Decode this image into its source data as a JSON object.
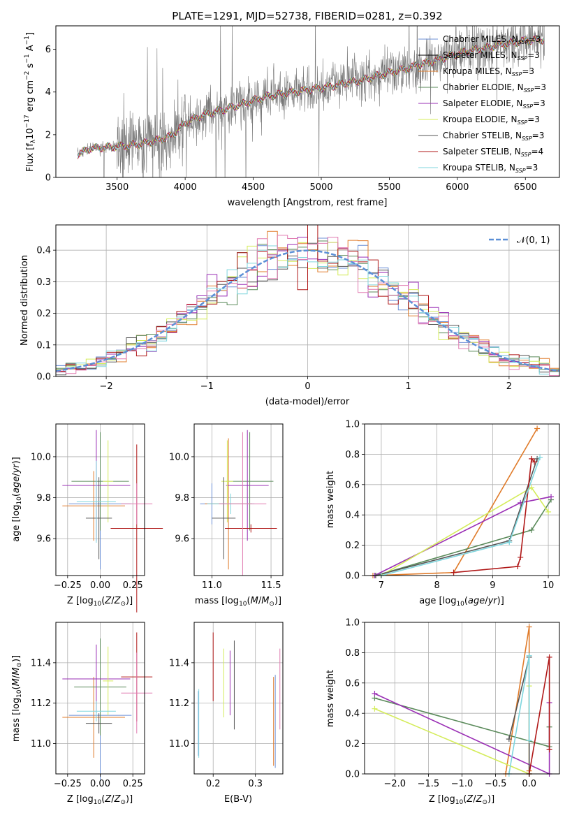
{
  "colors": {
    "chabrier_miles": "#6b8fd6",
    "salpeter_miles": "#000000",
    "kroupa_miles": "#e07b2a",
    "chabrier_elodie": "#5a8a5a",
    "salpeter_elodie": "#9a2fb5",
    "kroupa_elodie": "#d4ec5a",
    "chabrier_stelib": "#555555",
    "salpeter_stelib": "#b01818",
    "kroupa_stelib": "#7fd6de",
    "pink": "#e07ab0",
    "normal": "#5b8fd6",
    "data": "#777777"
  },
  "chart_data": [
    {
      "id": "spectrum",
      "type": "line",
      "title": "PLATE=1291, MJD=52738, FIBERID=0281, z=0.392",
      "xlabel": "wavelength [Angstrom, rest frame]",
      "ylabel": "Flux [f_λ 10^-17 erg cm^-2 s^-1 A^-1]",
      "xlim": [
        3050,
        6750
      ],
      "ylim": [
        0,
        7.1
      ],
      "xticks": [
        "3500",
        "4000",
        "4500",
        "5000",
        "5500",
        "6000",
        "6500"
      ],
      "yticks": [
        "0",
        "2",
        "4",
        "6"
      ],
      "legend_position": "right",
      "legend": [
        {
          "name": "Chabrier MILES, N_SSP=3",
          "color_key": "chabrier_miles"
        },
        {
          "name": "Salpeter MILES, N_SSP=3",
          "color_key": "salpeter_miles"
        },
        {
          "name": "Kroupa MILES, N_SSP=3",
          "color_key": "kroupa_miles"
        },
        {
          "name": "Chabrier ELODIE, N_SSP=3",
          "color_key": "chabrier_elodie"
        },
        {
          "name": "Salpeter ELODIE, N_SSP=3",
          "color_key": "salpeter_elodie"
        },
        {
          "name": "Kroupa ELODIE, N_SSP=3",
          "color_key": "kroupa_elodie"
        },
        {
          "name": "Chabrier STELIB, N_SSP=3",
          "color_key": "chabrier_stelib"
        },
        {
          "name": "Salpeter STELIB, N_SSP=4",
          "color_key": "salpeter_stelib"
        },
        {
          "name": "Kroupa STELIB, N_SSP=3",
          "color_key": "kroupa_stelib"
        }
      ],
      "model_continuum": [
        [
          3200,
          1.05
        ],
        [
          3300,
          1.35
        ],
        [
          3400,
          1.4
        ],
        [
          3500,
          1.45
        ],
        [
          3600,
          1.5
        ],
        [
          3700,
          1.6
        ],
        [
          3800,
          1.75
        ],
        [
          3900,
          1.95
        ],
        [
          4000,
          2.55
        ],
        [
          4100,
          2.85
        ],
        [
          4200,
          3.05
        ],
        [
          4300,
          3.2
        ],
        [
          4400,
          3.4
        ],
        [
          4500,
          3.6
        ],
        [
          4600,
          3.8
        ],
        [
          4700,
          3.9
        ],
        [
          4800,
          4.0
        ],
        [
          4900,
          4.1
        ],
        [
          5000,
          4.2
        ],
        [
          5100,
          4.3
        ],
        [
          5200,
          4.45
        ],
        [
          5300,
          4.55
        ],
        [
          5400,
          4.75
        ],
        [
          5500,
          4.9
        ],
        [
          5600,
          5.05
        ],
        [
          5700,
          5.25
        ],
        [
          5800,
          5.4
        ],
        [
          5900,
          5.6
        ],
        [
          6000,
          5.8
        ],
        [
          6100,
          5.95
        ],
        [
          6200,
          6.05
        ],
        [
          6300,
          6.2
        ],
        [
          6400,
          6.3
        ],
        [
          6500,
          6.4
        ],
        [
          6600,
          6.45
        ]
      ]
    },
    {
      "id": "residuals",
      "type": "line",
      "xlabel": "(data-model)/error",
      "ylabel": "Normed distribution",
      "xlim": [
        -2.5,
        2.5
      ],
      "ylim": [
        0,
        0.48
      ],
      "xticks": [
        "−2",
        "−1",
        "0",
        "1",
        "2"
      ],
      "yticks": [
        "0.0",
        "0.1",
        "0.2",
        "0.3",
        "0.4"
      ],
      "legend": [
        {
          "name": "𝒩(0, 1)",
          "color_key": "normal"
        }
      ],
      "legend_position": "top-right",
      "bin_width": 0.1
    },
    {
      "id": "age_vs_Z",
      "type": "scatter",
      "xlabel": "Z [log10(Z/Z⊙)]",
      "ylabel": "age  [log10(age/yr)]",
      "xlim": [
        -0.34,
        0.34
      ],
      "ylim": [
        9.42,
        10.16
      ],
      "xticks": [
        "−0.25",
        "0.00",
        "0.25"
      ],
      "yticks": [
        "9.6",
        "9.8",
        "10.0"
      ],
      "points": [
        {
          "x": 0.0,
          "xerr": 0.24,
          "y": 9.77,
          "yerr": 0.32,
          "color_key": "chabrier_miles"
        },
        {
          "x": -0.05,
          "xerr": 0.24,
          "y": 9.76,
          "yerr": 0.17,
          "color_key": "kroupa_miles"
        },
        {
          "x": 0.0,
          "xerr": 0.22,
          "y": 9.88,
          "yerr": 0.24,
          "color_key": "chabrier_elodie"
        },
        {
          "x": -0.03,
          "xerr": 0.26,
          "y": 9.86,
          "yerr": 0.27,
          "color_key": "salpeter_elodie"
        },
        {
          "x": 0.06,
          "xerr": 0.04,
          "y": 9.88,
          "yerr": 0.2,
          "color_key": "kroupa_elodie"
        },
        {
          "x": -0.01,
          "xerr": 0.1,
          "y": 9.7,
          "yerr": 0.2,
          "color_key": "chabrier_stelib"
        },
        {
          "x": 0.28,
          "xerr": 0.2,
          "y": 9.65,
          "yerr": 0.41,
          "color_key": "salpeter_stelib"
        },
        {
          "x": -0.03,
          "xerr": 0.15,
          "y": 9.78,
          "yerr": 0.2,
          "color_key": "kroupa_stelib"
        },
        {
          "x": 0.28,
          "xerr": 0.12,
          "y": 9.77,
          "yerr": 0.1,
          "color_key": "pink"
        }
      ]
    },
    {
      "id": "age_vs_mass",
      "type": "scatter",
      "xlabel": "mass [log10(M/M⊙)]",
      "xlim": [
        10.85,
        11.6
      ],
      "ylim": [
        9.42,
        10.16
      ],
      "xticks": [
        "11.0",
        "11.5"
      ],
      "yticks": [
        "9.6",
        "9.8",
        "10.0"
      ],
      "points": [
        {
          "x": 11.0,
          "xerr": 0.1,
          "y": 9.77,
          "yerr": 0.1,
          "color_key": "chabrier_miles"
        },
        {
          "x": 11.14,
          "xerr": 0.2,
          "y": 9.77,
          "yerr": 0.32,
          "color_key": "kroupa_miles"
        },
        {
          "x": 11.32,
          "xerr": 0.2,
          "y": 9.88,
          "yerr": 0.24,
          "color_key": "chabrier_elodie"
        },
        {
          "x": 11.3,
          "xerr": 0.18,
          "y": 9.86,
          "yerr": 0.27,
          "color_key": "salpeter_elodie"
        },
        {
          "x": 11.13,
          "xerr": 0.05,
          "y": 9.88,
          "yerr": 0.2,
          "color_key": "kroupa_elodie"
        },
        {
          "x": 11.1,
          "xerr": 0.1,
          "y": 9.7,
          "yerr": 0.2,
          "color_key": "chabrier_stelib"
        },
        {
          "x": 11.33,
          "xerr": 0.22,
          "y": 9.65,
          "yerr": 0.02,
          "color_key": "salpeter_stelib"
        },
        {
          "x": 11.16,
          "xerr": 0.2,
          "y": 9.77,
          "yerr": 0.05,
          "color_key": "kroupa_stelib"
        },
        {
          "x": 11.26,
          "xerr": 0.2,
          "y": 9.77,
          "yerr": 0.35,
          "color_key": "pink"
        }
      ]
    },
    {
      "id": "weight_vs_age",
      "type": "line",
      "xlabel": "age  [log10(age/yr)]",
      "ylabel": "mass weight",
      "xlim": [
        6.7,
        10.2
      ],
      "ylim": [
        0,
        1
      ],
      "xticks": [
        "7",
        "8",
        "9",
        "10"
      ],
      "yticks": [
        "0.0",
        "0.2",
        "0.4",
        "0.6",
        "0.8",
        "1.0"
      ],
      "series": [
        {
          "color_key": "kroupa_miles",
          "x": [
            6.85,
            8.3,
            9.8
          ],
          "y": [
            0.0,
            0.02,
            0.97
          ]
        },
        {
          "color_key": "chabrier_elodie",
          "x": [
            6.9,
            9.7,
            10.05
          ],
          "y": [
            0.0,
            0.3,
            0.5
          ]
        },
        {
          "color_key": "salpeter_elodie",
          "x": [
            6.88,
            9.5,
            10.05
          ],
          "y": [
            0.0,
            0.48,
            0.52
          ]
        },
        {
          "color_key": "kroupa_elodie",
          "x": [
            7.0,
            9.7,
            10.0
          ],
          "y": [
            0.0,
            0.58,
            0.42
          ]
        },
        {
          "color_key": "chabrier_stelib",
          "x": [
            6.9,
            9.3,
            9.8
          ],
          "y": [
            0.0,
            0.23,
            0.77
          ]
        },
        {
          "color_key": "salpeter_stelib",
          "x": [
            8.3,
            9.45,
            9.5,
            9.7,
            9.75
          ],
          "y": [
            0.02,
            0.06,
            0.12,
            0.77,
            0.75
          ]
        },
        {
          "color_key": "kroupa_stelib",
          "x": [
            7.0,
            9.3,
            9.85
          ],
          "y": [
            0.0,
            0.22,
            0.78
          ]
        }
      ]
    },
    {
      "id": "mass_vs_Z",
      "type": "scatter",
      "xlabel": "Z [log10(Z/Z⊙)]",
      "ylabel": "mass [log10(M/M⊙)]",
      "xlim": [
        -0.34,
        0.34
      ],
      "ylim": [
        10.85,
        11.6
      ],
      "xticks": [
        "−0.25",
        "0.00",
        "0.25"
      ],
      "yticks": [
        "11.0",
        "11.2",
        "11.4"
      ],
      "points": [
        {
          "x": 0.0,
          "xerr": 0.24,
          "y": 11.14,
          "yerr": 0.32,
          "color_key": "chabrier_miles"
        },
        {
          "x": -0.05,
          "xerr": 0.24,
          "y": 11.13,
          "yerr": 0.2,
          "color_key": "kroupa_miles"
        },
        {
          "x": 0.0,
          "xerr": 0.2,
          "y": 11.28,
          "yerr": 0.24,
          "color_key": "chabrier_elodie"
        },
        {
          "x": -0.03,
          "xerr": 0.26,
          "y": 11.32,
          "yerr": 0.17,
          "color_key": "salpeter_elodie"
        },
        {
          "x": 0.06,
          "xerr": 0.04,
          "y": 11.31,
          "yerr": 0.17,
          "color_key": "kroupa_elodie"
        },
        {
          "x": -0.01,
          "xerr": 0.1,
          "y": 11.1,
          "yerr": 0.05,
          "color_key": "chabrier_stelib"
        },
        {
          "x": 0.28,
          "xerr": 0.12,
          "y": 11.33,
          "yerr": 0.22,
          "color_key": "salpeter_stelib"
        },
        {
          "x": -0.03,
          "xerr": 0.15,
          "y": 11.16,
          "yerr": 0.05,
          "color_key": "kroupa_stelib"
        },
        {
          "x": 0.28,
          "xerr": 0.12,
          "y": 11.25,
          "yerr": 0.2,
          "color_key": "pink"
        }
      ]
    },
    {
      "id": "mass_vs_ebv",
      "type": "scatter",
      "xlabel": "E(B-V)",
      "xlim": [
        0.155,
        0.365
      ],
      "ylim": [
        10.85,
        11.6
      ],
      "xticks": [
        "0.2",
        "0.3"
      ],
      "yticks": [
        "11.0",
        "11.2",
        "11.4"
      ],
      "points": [
        {
          "x": 0.165,
          "y": 11.1,
          "yerr": 0.16,
          "color_key": "chabrier_miles"
        },
        {
          "x": 0.166,
          "y": 11.1,
          "yerr": 0.17,
          "color_key": "kroupa_stelib"
        },
        {
          "x": 0.2,
          "y": 11.38,
          "yerr": 0.17,
          "color_key": "salpeter_stelib"
        },
        {
          "x": 0.225,
          "y": 11.3,
          "yerr": 0.17,
          "color_key": "kroupa_elodie"
        },
        {
          "x": 0.24,
          "y": 11.3,
          "yerr": 0.16,
          "color_key": "salpeter_elodie"
        },
        {
          "x": 0.25,
          "y": 11.29,
          "yerr": 0.22,
          "color_key": "chabrier_stelib"
        },
        {
          "x": 0.343,
          "y": 11.11,
          "yerr": 0.22,
          "color_key": "kroupa_miles"
        },
        {
          "x": 0.347,
          "y": 11.11,
          "yerr": 0.23,
          "color_key": "chabrier_miles"
        },
        {
          "x": 0.358,
          "y": 11.27,
          "yerr": 0.2,
          "color_key": "pink"
        }
      ]
    },
    {
      "id": "weight_vs_Z",
      "type": "line",
      "xlabel": "Z [log10(Z/Z⊙)]",
      "ylabel": "mass weight",
      "xlim": [
        -2.45,
        0.45
      ],
      "ylim": [
        0,
        1
      ],
      "xticks": [
        "−2.0",
        "−1.5",
        "−1.0",
        "−0.5",
        "0.0"
      ],
      "yticks": [
        "0.0",
        "0.2",
        "0.4",
        "0.6",
        "0.8",
        "1.0"
      ],
      "series": [
        {
          "color_key": "kroupa_miles",
          "x": [
            -0.35,
            0.0,
            0.0
          ],
          "y": [
            0.0,
            0.97,
            0.02
          ]
        },
        {
          "color_key": "chabrier_elodie",
          "x": [
            -2.3,
            0.3,
            0.3
          ],
          "y": [
            0.5,
            0.18,
            0.31
          ]
        },
        {
          "color_key": "salpeter_elodie",
          "x": [
            -2.3,
            0.3,
            0.3
          ],
          "y": [
            0.53,
            0.0,
            0.47
          ]
        },
        {
          "color_key": "kroupa_elodie",
          "x": [
            -2.3,
            0.0,
            0.0
          ],
          "y": [
            0.43,
            0.0,
            0.58
          ]
        },
        {
          "color_key": "chabrier_stelib",
          "x": [
            -0.3,
            0.0,
            0.0
          ],
          "y": [
            0.23,
            0.77,
            0.0
          ]
        },
        {
          "color_key": "salpeter_stelib",
          "x": [
            0.0,
            0.3,
            0.3
          ],
          "y": [
            0.0,
            0.77,
            0.16
          ]
        },
        {
          "color_key": "kroupa_stelib",
          "x": [
            -0.3,
            0.0,
            0.0
          ],
          "y": [
            0.0,
            0.78,
            0.22
          ]
        }
      ]
    }
  ]
}
